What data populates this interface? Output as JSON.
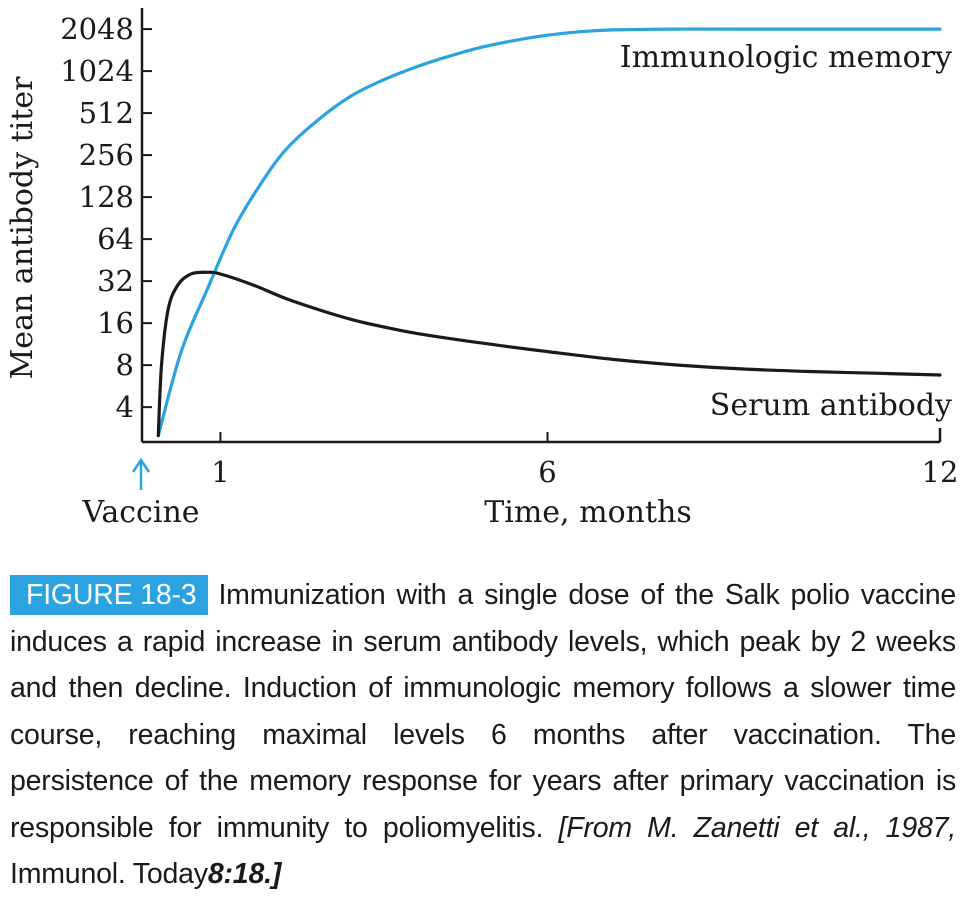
{
  "chart_data": {
    "type": "line",
    "title": "",
    "xlabel": "Time, months",
    "ylabel": "Mean antibody titer",
    "yscale": "log2",
    "xlim": [
      0,
      12
    ],
    "ylim": [
      2.25,
      2900
    ],
    "x_ticks": [
      1,
      6,
      12
    ],
    "y_ticks": [
      4,
      8,
      16,
      32,
      64,
      128,
      256,
      512,
      1024,
      2048
    ],
    "grid": false,
    "annotations": [
      {
        "text": "Vaccine",
        "at_x": 0,
        "marker": "up-arrow",
        "color": "#2aa3e0"
      }
    ],
    "series": [
      {
        "name": "Immunologic memory",
        "color": "#2aa3e0",
        "points": [
          [
            0.05,
            2.5
          ],
          [
            0.4,
            10
          ],
          [
            0.8,
            28
          ],
          [
            1.2,
            75
          ],
          [
            1.6,
            155
          ],
          [
            2,
            280
          ],
          [
            2.5,
            460
          ],
          [
            3,
            680
          ],
          [
            3.5,
            890
          ],
          [
            4,
            1100
          ],
          [
            4.5,
            1310
          ],
          [
            5,
            1520
          ],
          [
            5.5,
            1700
          ],
          [
            6,
            1850
          ],
          [
            6.5,
            1960
          ],
          [
            7,
            2020
          ],
          [
            8,
            2048
          ],
          [
            9,
            2048
          ],
          [
            10,
            2048
          ],
          [
            11,
            2048
          ],
          [
            12,
            2048
          ]
        ]
      },
      {
        "name": "Serum antibody",
        "color": "#1a1a1a",
        "points": [
          [
            0.05,
            2.5
          ],
          [
            0.1,
            8
          ],
          [
            0.2,
            20
          ],
          [
            0.35,
            30
          ],
          [
            0.55,
            36
          ],
          [
            0.8,
            37
          ],
          [
            1,
            36
          ],
          [
            1.5,
            30
          ],
          [
            2,
            24
          ],
          [
            2.5,
            20
          ],
          [
            3,
            17
          ],
          [
            3.5,
            15
          ],
          [
            4,
            13.5
          ],
          [
            5,
            11.5
          ],
          [
            6,
            10
          ],
          [
            7,
            8.8
          ],
          [
            8,
            8
          ],
          [
            9,
            7.5
          ],
          [
            10,
            7.2
          ],
          [
            11,
            7
          ],
          [
            12,
            6.8
          ]
        ]
      }
    ]
  },
  "caption": {
    "figure_label": "FIGURE 18-3",
    "text": "Immunization with a single dose of the Salk polio vaccine induces a rapid increase in serum antibody levels, which peak by 2 weeks and then decline. Induction of immunologic memory follows a slower time course, reaching maximal levels 6 months after vaccination. The persistence of the memory response for years after primary vaccination is responsible for immunity to poliomyelitis.",
    "source_prefix": "[From M. Zanetti et al., 1987,",
    "source_journal": "Immunol. Today",
    "source_ref": "8:18.]"
  }
}
